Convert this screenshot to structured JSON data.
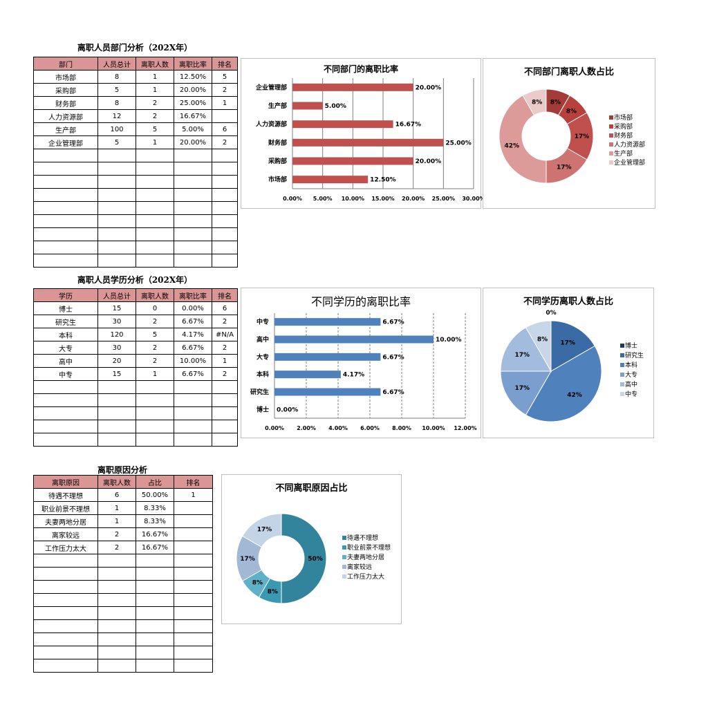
{
  "sections": [
    {
      "title": "离职人员部门分析（202X年）",
      "headers": [
        "部门",
        "人员总计",
        "离职人数",
        "离职比率",
        "排名"
      ],
      "rows": [
        [
          "市场部",
          "8",
          "1",
          "12.50%",
          "5"
        ],
        [
          "采购部",
          "5",
          "1",
          "20.00%",
          "2"
        ],
        [
          "财务部",
          "8",
          "2",
          "25.00%",
          "1"
        ],
        [
          "人力资源部",
          "12",
          "2",
          "16.67%",
          ""
        ],
        [
          "生产部",
          "100",
          "5",
          "5.00%",
          "6"
        ],
        [
          "企业管理部",
          "5",
          "1",
          "20.00%",
          "2"
        ]
      ]
    },
    {
      "title": "离职人员学历分析（202X年）",
      "headers": [
        "学历",
        "人员总计",
        "离职人数",
        "离职比率",
        "排名"
      ],
      "rows": [
        [
          "博士",
          "15",
          "0",
          "0.00%",
          "6"
        ],
        [
          "研究生",
          "30",
          "2",
          "6.67%",
          "2"
        ],
        [
          "本科",
          "120",
          "5",
          "4.17%",
          "#N/A"
        ],
        [
          "大专",
          "30",
          "2",
          "6.67%",
          "2"
        ],
        [
          "高中",
          "20",
          "2",
          "10.00%",
          "1"
        ],
        [
          "中专",
          "15",
          "1",
          "6.67%",
          "2"
        ]
      ]
    },
    {
      "title": "离职原因分析",
      "headers": [
        "离职原因",
        "离职人数",
        "占比",
        "排名"
      ],
      "rows": [
        [
          "待遇不理想",
          "6",
          "50.00%",
          "1"
        ],
        [
          "职业前景不理想",
          "1",
          "8.33%",
          ""
        ],
        [
          "夫妻两地分居",
          "1",
          "8.33%",
          ""
        ],
        [
          "离家较远",
          "2",
          "16.67%",
          ""
        ],
        [
          "工作压力太大",
          "2",
          "16.67%",
          ""
        ]
      ]
    }
  ],
  "chart_data": [
    {
      "type": "bar",
      "orientation": "horizontal",
      "title": "不同部门的离职比率",
      "categories": [
        "市场部",
        "采购部",
        "财务部",
        "人力资源部",
        "生产部",
        "企业管理部"
      ],
      "values": [
        12.5,
        20.0,
        25.0,
        16.67,
        5.0,
        20.0
      ],
      "value_labels": [
        "12.50%",
        "20.00%",
        "25.00%",
        "16.67%",
        "5.00%",
        "20.00%"
      ],
      "xlim": [
        0,
        30
      ],
      "ticks": [
        "0.00%",
        "5.00%",
        "10.00%",
        "15.00%",
        "20.00%",
        "25.00%",
        "30.00%"
      ],
      "grid": "vertical",
      "color": "#c0504d"
    },
    {
      "type": "pie",
      "style": "doughnut",
      "title": "不同部门离职人数占比",
      "labels": [
        "市场部",
        "采购部",
        "财务部",
        "人力资源部",
        "生产部",
        "企业管理部"
      ],
      "values": [
        1,
        1,
        2,
        2,
        5,
        1
      ],
      "pct_labels": [
        "8%",
        "8%",
        "17%",
        "17%",
        "42%",
        "8%"
      ],
      "colors": [
        "#a33b38",
        "#b8413e",
        "#c0504d",
        "#cd7371",
        "#dc9a98",
        "#eacbca"
      ],
      "legend": "right"
    },
    {
      "type": "bar",
      "orientation": "horizontal",
      "title": "不同学历的离职比率",
      "categories": [
        "博士",
        "研究生",
        "本科",
        "大专",
        "高中",
        "中专"
      ],
      "values": [
        0.0,
        6.67,
        4.17,
        6.67,
        10.0,
        6.67
      ],
      "value_labels": [
        "0.00%",
        "6.67%",
        "4.17%",
        "6.67%",
        "10.00%",
        "6.67%"
      ],
      "xlim": [
        0,
        12
      ],
      "ticks": [
        "0.00%",
        "2.00%",
        "4.00%",
        "6.00%",
        "8.00%",
        "10.00%",
        "12.00%"
      ],
      "grid": "vertical-dashed",
      "color": "#4f81bd"
    },
    {
      "type": "pie",
      "title": "不同学历离职人数占比",
      "labels": [
        "博士",
        "研究生",
        "本科",
        "大专",
        "高中",
        "中专"
      ],
      "values": [
        0,
        2,
        5,
        2,
        2,
        1
      ],
      "pct_labels": [
        "0%",
        "17%",
        "42%",
        "17%",
        "17%",
        "8%"
      ],
      "colors": [
        "#1f3864",
        "#3b6ba5",
        "#4f81bd",
        "#7a9fcf",
        "#a3bcdd",
        "#c8d6ea"
      ],
      "legend": "right"
    },
    {
      "type": "pie",
      "style": "doughnut",
      "title": "不同离职原因占比",
      "labels": [
        "待遇不理想",
        "职业前景不理想",
        "夫妻两地分居",
        "离家较远",
        "工作压力太大"
      ],
      "values": [
        6,
        1,
        1,
        2,
        2
      ],
      "pct_labels": [
        "50%",
        "8%",
        "8%",
        "17%",
        "17%"
      ],
      "colors": [
        "#31849b",
        "#3a98b1",
        "#5fb1c7",
        "#a2b9d6",
        "#c4d4e7"
      ],
      "legend": "right"
    }
  ]
}
